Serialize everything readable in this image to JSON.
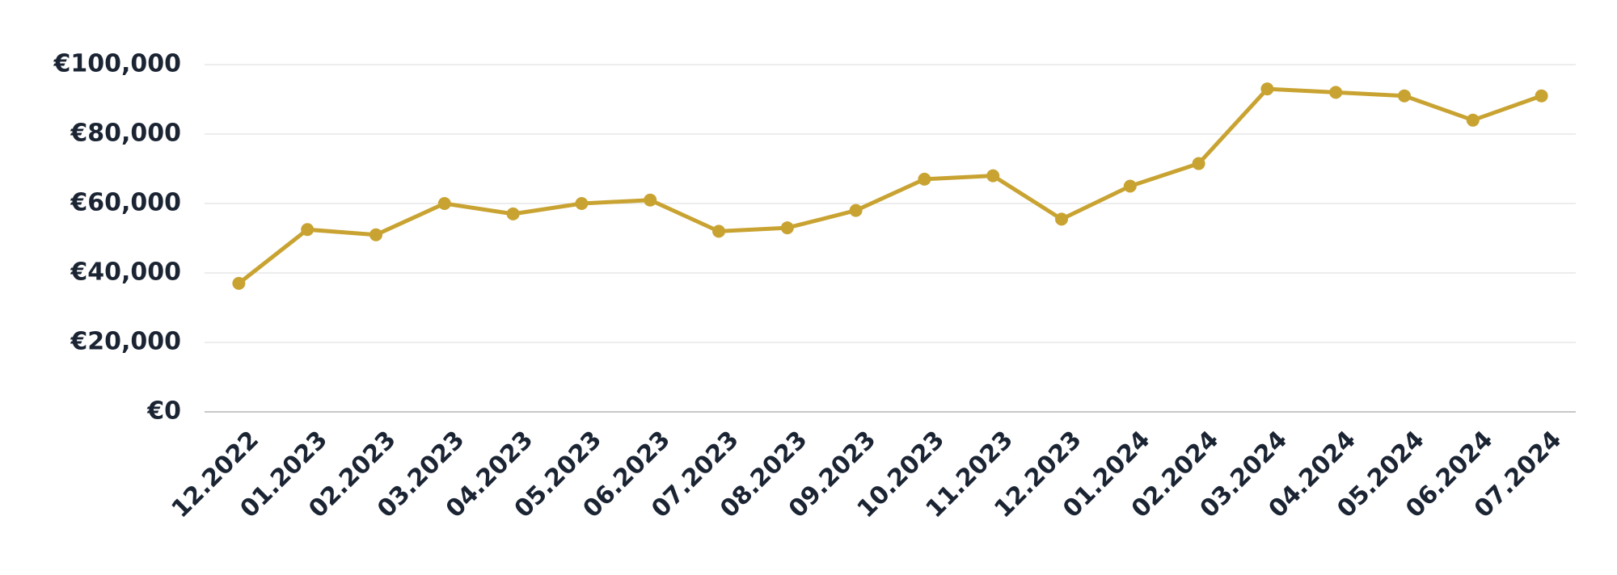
{
  "chart_data": {
    "type": "line",
    "categories": [
      "12.2022",
      "01.2023",
      "02.2023",
      "03.2023",
      "04.2023",
      "05.2023",
      "06.2023",
      "07.2023",
      "08.2023",
      "09.2023",
      "10.2023",
      "11.2023",
      "12.2023",
      "01.2024",
      "02.2024",
      "03.2024",
      "04.2024",
      "05.2024",
      "06.2024",
      "07.2024"
    ],
    "values": [
      37000,
      52500,
      51000,
      60000,
      57000,
      60000,
      61000,
      52000,
      53000,
      58000,
      67000,
      68000,
      55500,
      65000,
      71500,
      93000,
      92000,
      91000,
      84000,
      91000
    ],
    "color": "#c9a332",
    "ylim": [
      0,
      100000
    ],
    "yticks": [
      {
        "value": 0,
        "label": "€0"
      },
      {
        "value": 20000,
        "label": "€20,000"
      },
      {
        "value": 40000,
        "label": "€40,000"
      },
      {
        "value": 60000,
        "label": "€60,000"
      },
      {
        "value": 80000,
        "label": "€80,000"
      },
      {
        "value": 100000,
        "label": "€100,000"
      }
    ],
    "grid": true
  }
}
